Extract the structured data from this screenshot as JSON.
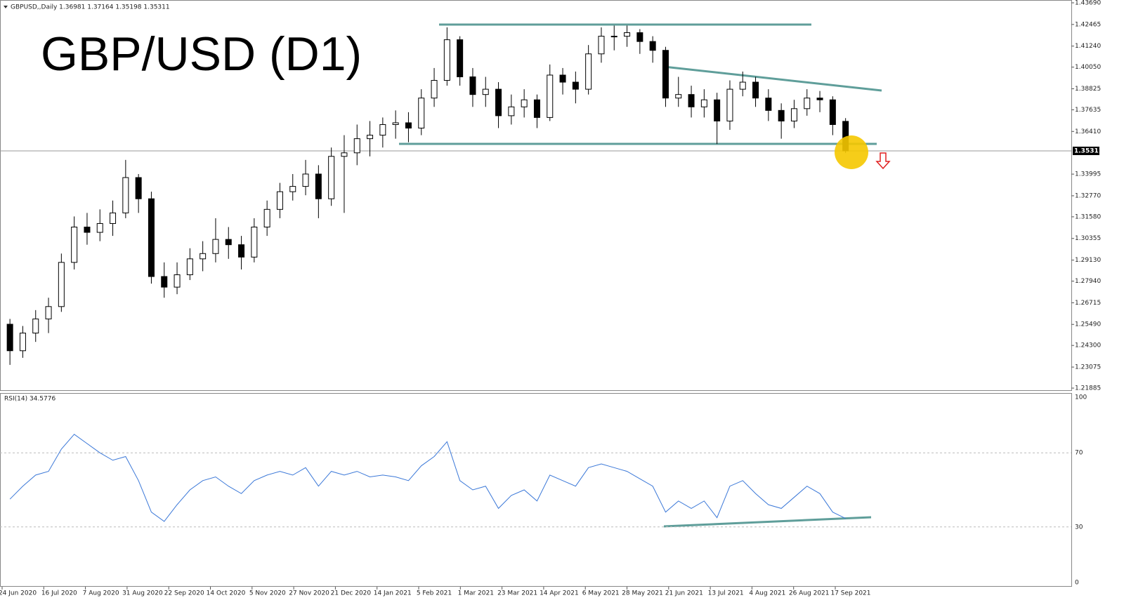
{
  "chart_data": [
    {
      "type": "candlestick",
      "header": "GBPUSD,,Daily  1.36981 1.37164 1.35198 1.35311",
      "title": "GBP/USD (D1)",
      "ohlc": [
        [
          1.255,
          1.258,
          1.232,
          1.24
        ],
        [
          1.24,
          1.254,
          1.236,
          1.25
        ],
        [
          1.25,
          1.263,
          1.245,
          1.258
        ],
        [
          1.258,
          1.27,
          1.25,
          1.265
        ],
        [
          1.265,
          1.295,
          1.262,
          1.29
        ],
        [
          1.29,
          1.316,
          1.286,
          1.31
        ],
        [
          1.31,
          1.318,
          1.3,
          1.307
        ],
        [
          1.307,
          1.32,
          1.302,
          1.312
        ],
        [
          1.312,
          1.325,
          1.305,
          1.318
        ],
        [
          1.318,
          1.348,
          1.315,
          1.338
        ],
        [
          1.338,
          1.34,
          1.318,
          1.326
        ],
        [
          1.326,
          1.33,
          1.278,
          1.282
        ],
        [
          1.282,
          1.29,
          1.27,
          1.276
        ],
        [
          1.276,
          1.29,
          1.272,
          1.283
        ],
        [
          1.283,
          1.298,
          1.28,
          1.292
        ],
        [
          1.292,
          1.302,
          1.285,
          1.295
        ],
        [
          1.295,
          1.315,
          1.29,
          1.303
        ],
        [
          1.303,
          1.31,
          1.292,
          1.3
        ],
        [
          1.3,
          1.305,
          1.286,
          1.293
        ],
        [
          1.293,
          1.315,
          1.29,
          1.31
        ],
        [
          1.31,
          1.325,
          1.305,
          1.32
        ],
        [
          1.32,
          1.335,
          1.315,
          1.33
        ],
        [
          1.33,
          1.34,
          1.325,
          1.333
        ],
        [
          1.333,
          1.348,
          1.328,
          1.34
        ],
        [
          1.34,
          1.345,
          1.315,
          1.326
        ],
        [
          1.326,
          1.355,
          1.322,
          1.35
        ],
        [
          1.35,
          1.362,
          1.318,
          1.352
        ],
        [
          1.352,
          1.368,
          1.345,
          1.36
        ],
        [
          1.36,
          1.37,
          1.35,
          1.362
        ],
        [
          1.362,
          1.372,
          1.355,
          1.368
        ],
        [
          1.368,
          1.376,
          1.36,
          1.369
        ],
        [
          1.369,
          1.375,
          1.358,
          1.366
        ],
        [
          1.366,
          1.388,
          1.362,
          1.383
        ],
        [
          1.383,
          1.4,
          1.378,
          1.393
        ],
        [
          1.393,
          1.423,
          1.39,
          1.416
        ],
        [
          1.416,
          1.418,
          1.39,
          1.395
        ],
        [
          1.395,
          1.4,
          1.378,
          1.385
        ],
        [
          1.385,
          1.395,
          1.378,
          1.388
        ],
        [
          1.388,
          1.392,
          1.366,
          1.373
        ],
        [
          1.373,
          1.385,
          1.368,
          1.378
        ],
        [
          1.378,
          1.388,
          1.372,
          1.382
        ],
        [
          1.382,
          1.385,
          1.366,
          1.372
        ],
        [
          1.372,
          1.402,
          1.37,
          1.396
        ],
        [
          1.396,
          1.4,
          1.385,
          1.392
        ],
        [
          1.392,
          1.398,
          1.38,
          1.388
        ],
        [
          1.388,
          1.413,
          1.385,
          1.408
        ],
        [
          1.408,
          1.423,
          1.403,
          1.418
        ],
        [
          1.418,
          1.424,
          1.41,
          1.418
        ],
        [
          1.418,
          1.424,
          1.412,
          1.42
        ],
        [
          1.42,
          1.422,
          1.408,
          1.415
        ],
        [
          1.415,
          1.418,
          1.403,
          1.41
        ],
        [
          1.41,
          1.412,
          1.378,
          1.383
        ],
        [
          1.383,
          1.395,
          1.378,
          1.385
        ],
        [
          1.385,
          1.39,
          1.372,
          1.378
        ],
        [
          1.378,
          1.388,
          1.372,
          1.382
        ],
        [
          1.382,
          1.386,
          1.357,
          1.37
        ],
        [
          1.37,
          1.393,
          1.365,
          1.388
        ],
        [
          1.388,
          1.398,
          1.384,
          1.392
        ],
        [
          1.392,
          1.395,
          1.378,
          1.383
        ],
        [
          1.383,
          1.388,
          1.37,
          1.376
        ],
        [
          1.376,
          1.38,
          1.36,
          1.37
        ],
        [
          1.37,
          1.382,
          1.366,
          1.377
        ],
        [
          1.377,
          1.388,
          1.373,
          1.383
        ],
        [
          1.383,
          1.387,
          1.375,
          1.382
        ],
        [
          1.382,
          1.384,
          1.362,
          1.368
        ],
        [
          1.36981,
          1.37164,
          1.35198,
          1.35311
        ]
      ],
      "ylim": [
        1.21885,
        1.4369
      ],
      "yticks": [
        {
          "value": 1.4369,
          "label": "1.43690"
        },
        1.42465,
        {
          "value": 1.4124,
          "label": "1.41240"
        },
        {
          "value": 1.4005,
          "label": "1.40050"
        },
        1.38825,
        1.37635,
        {
          "value": 1.3641,
          "label": "1.36410"
        },
        1.33995,
        {
          "value": 1.3277,
          "label": "1.32770"
        },
        {
          "value": 1.3158,
          "label": "1.31580"
        },
        1.30355,
        {
          "value": 1.2913,
          "label": "1.29130"
        },
        {
          "value": 1.2794,
          "label": "1.27940"
        },
        1.26715,
        {
          "value": 1.2549,
          "label": "1.25490"
        },
        {
          "value": 1.243,
          "label": "1.24300"
        },
        1.23075,
        1.21885
      ],
      "price_line": {
        "value": 1.35311,
        "label": "1.35311"
      },
      "xlabels": [
        "24 Jun 2020",
        "16 Jul 2020",
        "7 Aug 2020",
        "31 Aug 2020",
        "22 Sep 2020",
        "14 Oct 2020",
        "5 Nov 2020",
        "27 Nov 2020",
        "21 Dec 2020",
        "14 Jan 2021",
        "5 Feb 2021",
        "1 Mar 2021",
        "23 Mar 2021",
        "14 Apr 2021",
        "6 May 2021",
        "28 May 2021",
        "21 Jun 2021",
        "13 Jul 2021",
        "4 Aug 2021",
        "26 Aug 2021",
        "17 Sep 2021"
      ]
    },
    {
      "type": "line",
      "label": "RSI(14) 34.5776",
      "color": "#3b78d8",
      "values": [
        45,
        52,
        58,
        60,
        72,
        80,
        75,
        70,
        66,
        68,
        55,
        38,
        33,
        42,
        50,
        55,
        57,
        52,
        48,
        55,
        58,
        60,
        58,
        62,
        52,
        60,
        58,
        60,
        57,
        58,
        57,
        55,
        63,
        68,
        76,
        55,
        50,
        52,
        40,
        47,
        50,
        44,
        58,
        55,
        52,
        62,
        64,
        62,
        60,
        56,
        52,
        38,
        44,
        40,
        44,
        35,
        52,
        55,
        48,
        42,
        40,
        46,
        52,
        48,
        38,
        34.5776
      ],
      "ylim": [
        0,
        100
      ],
      "yticks": [
        0,
        30,
        70,
        100
      ]
    }
  ]
}
